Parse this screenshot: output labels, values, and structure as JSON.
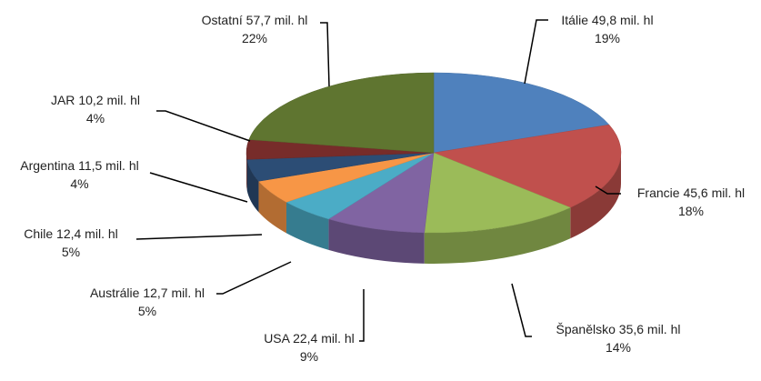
{
  "chart_data": {
    "type": "pie3d",
    "categories": [
      "Itálie",
      "Francie",
      "Španělsko",
      "USA",
      "Austrálie",
      "Chile",
      "Argentina",
      "JAR",
      "Ostatní"
    ],
    "values": [
      49.8,
      45.6,
      35.6,
      22.4,
      12.7,
      12.4,
      11.5,
      10.2,
      57.7
    ],
    "value_labels": [
      "49,8 mil. hl",
      "45,6 mil. hl",
      "35,6 mil. hl",
      "22,4 mil. hl",
      "12,7 mil. hl",
      "12,4 mil. hl",
      "11,5 mil. hl",
      "10,2 mil. hl",
      "57,7 mil. hl"
    ],
    "percentage_labels": [
      "19%",
      "18%",
      "14%",
      "9%",
      "5%",
      "5%",
      "4%",
      "4%",
      "22%"
    ],
    "colors": [
      "#4f81bd",
      "#c0504d",
      "#9bbb59",
      "#8064a2",
      "#4bacc6",
      "#f79646",
      "#2c4d75",
      "#772c2a",
      "#5f7530"
    ]
  }
}
